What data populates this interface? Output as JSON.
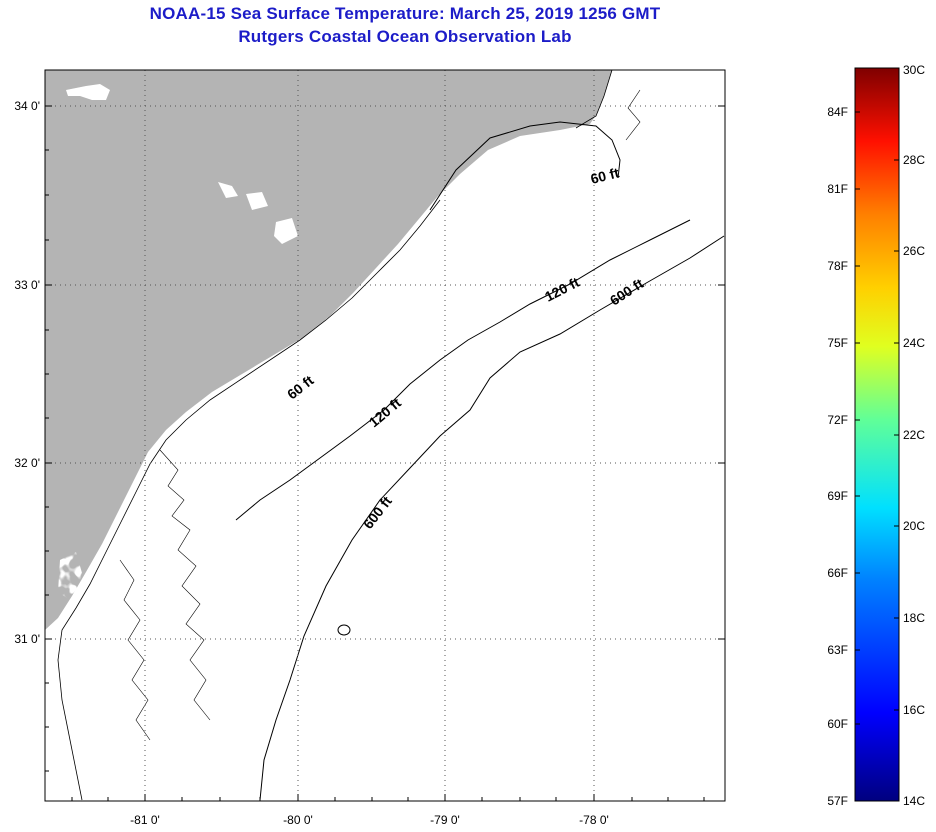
{
  "title": {
    "line1": "NOAA-15 Sea Surface Temperature:  March 25, 2019 1256 GMT",
    "line2": "Rutgers Coastal Ocean Observation Lab"
  },
  "map": {
    "lat_labels": [
      "34 0'",
      "33 0'",
      "32 0'",
      "31 0'"
    ],
    "lon_labels": [
      "-81 0'",
      "-80 0'",
      "-79 0'",
      "-78 0'"
    ],
    "contours": [
      "60 ft",
      "120 ft",
      "600 ft",
      "60 ft",
      "120 ft",
      "600 ft"
    ],
    "colors": {
      "land": "#b4b4b4",
      "nodata": "#ffffff"
    }
  },
  "colorbar": {
    "fahrenheit": [
      "84F",
      "81F",
      "78F",
      "75F",
      "72F",
      "69F",
      "66F",
      "63F",
      "60F",
      "57F"
    ],
    "celsius": [
      "30C",
      "28C",
      "26C",
      "24C",
      "22C",
      "20C",
      "18C",
      "16C",
      "14C"
    ]
  }
}
